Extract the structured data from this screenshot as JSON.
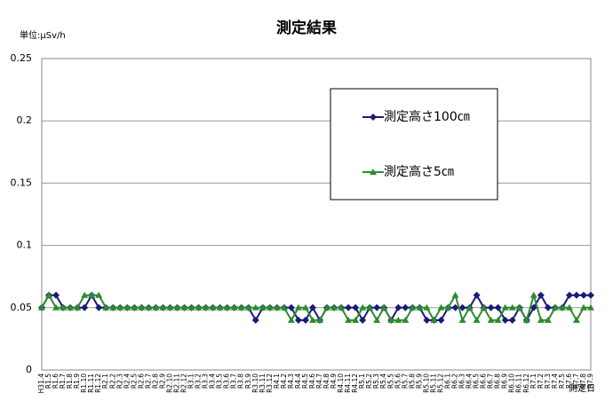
{
  "chart_data": {
    "type": "line",
    "title": "測定結果",
    "unit_label": "単位:μSv/h",
    "x_label": "測定日",
    "categories": [
      "H31.4",
      "R1.5",
      "R1.6",
      "R1.7",
      "R1.8",
      "R1.9",
      "R1.10",
      "R1.11",
      "R1.12",
      "R2.1",
      "R2.2",
      "R2.3",
      "R2.4",
      "R2.5",
      "R2.6",
      "R2.7",
      "R2.8",
      "R2.9",
      "R2.10",
      "R2.11",
      "R2.12",
      "R3.1",
      "R3.2",
      "R3.3",
      "R3.4",
      "R3.5",
      "R3.6",
      "R3.7",
      "R3.8",
      "R3.9",
      "R3.10",
      "R3.11",
      "R3.12",
      "R4.1",
      "R4.2",
      "R4.3",
      "R4.4",
      "R4.5",
      "R4.6",
      "R4.7",
      "R4.8",
      "R4.9",
      "R4.10",
      "R4.11",
      "R4.12",
      "R5.1",
      "R5.2",
      "R5.3",
      "R5.4",
      "R5.5",
      "R5.6",
      "R5.7",
      "R5.8",
      "R5.9",
      "R5.10",
      "R5.11",
      "R5.12",
      "R6.1",
      "R6.2",
      "R6.3",
      "R6.4",
      "R6.5",
      "R6.6",
      "R6.7",
      "R6.8",
      "R6.9",
      "R6.10",
      "R6.11",
      "R6.12",
      "R7.1",
      "R7.2",
      "R7.3",
      "R7.4",
      "R7.5",
      "R7.6",
      "R7.7",
      "R7.8",
      "R7.9"
    ],
    "series": [
      {
        "name": "測定高さ100㎝",
        "color": "#1a1a7a",
        "marker": "diamond",
        "values": [
          0.05,
          0.06,
          0.06,
          0.05,
          0.05,
          0.05,
          0.05,
          0.06,
          0.05,
          0.05,
          0.05,
          0.05,
          0.05,
          0.05,
          0.05,
          0.05,
          0.05,
          0.05,
          0.05,
          0.05,
          0.05,
          0.05,
          0.05,
          0.05,
          0.05,
          0.05,
          0.05,
          0.05,
          0.05,
          0.05,
          0.04,
          0.05,
          0.05,
          0.05,
          0.05,
          0.05,
          0.04,
          0.04,
          0.05,
          0.04,
          0.05,
          0.05,
          0.05,
          0.05,
          0.05,
          0.04,
          0.05,
          0.05,
          0.05,
          0.04,
          0.05,
          0.05,
          0.05,
          0.05,
          0.04,
          0.04,
          0.04,
          0.05,
          0.05,
          0.05,
          0.05,
          0.06,
          0.05,
          0.05,
          0.05,
          0.04,
          0.04,
          0.05,
          0.04,
          0.05,
          0.06,
          0.05,
          0.05,
          0.05,
          0.06,
          0.06,
          0.06,
          0.06
        ]
      },
      {
        "name": "測定高さ5㎝",
        "color": "#2e8b2e",
        "marker": "triangle",
        "values": [
          0.05,
          0.06,
          0.05,
          0.05,
          0.05,
          0.05,
          0.06,
          0.06,
          0.06,
          0.05,
          0.05,
          0.05,
          0.05,
          0.05,
          0.05,
          0.05,
          0.05,
          0.05,
          0.05,
          0.05,
          0.05,
          0.05,
          0.05,
          0.05,
          0.05,
          0.05,
          0.05,
          0.05,
          0.05,
          0.05,
          0.05,
          0.05,
          0.05,
          0.05,
          0.05,
          0.04,
          0.05,
          0.05,
          0.04,
          0.04,
          0.05,
          0.05,
          0.05,
          0.04,
          0.04,
          0.05,
          0.05,
          0.04,
          0.05,
          0.04,
          0.04,
          0.04,
          0.05,
          0.05,
          0.05,
          0.04,
          0.05,
          0.05,
          0.06,
          0.04,
          0.05,
          0.04,
          0.05,
          0.04,
          0.04,
          0.05,
          0.05,
          0.05,
          0.04,
          0.06,
          0.04,
          0.04,
          0.05,
          0.05,
          0.05,
          0.04,
          0.05,
          0.05
        ]
      }
    ],
    "ylim": [
      0,
      0.25
    ],
    "yticks": [
      0,
      0.05,
      0.1,
      0.15,
      0.2,
      0.25
    ],
    "grid": true
  }
}
